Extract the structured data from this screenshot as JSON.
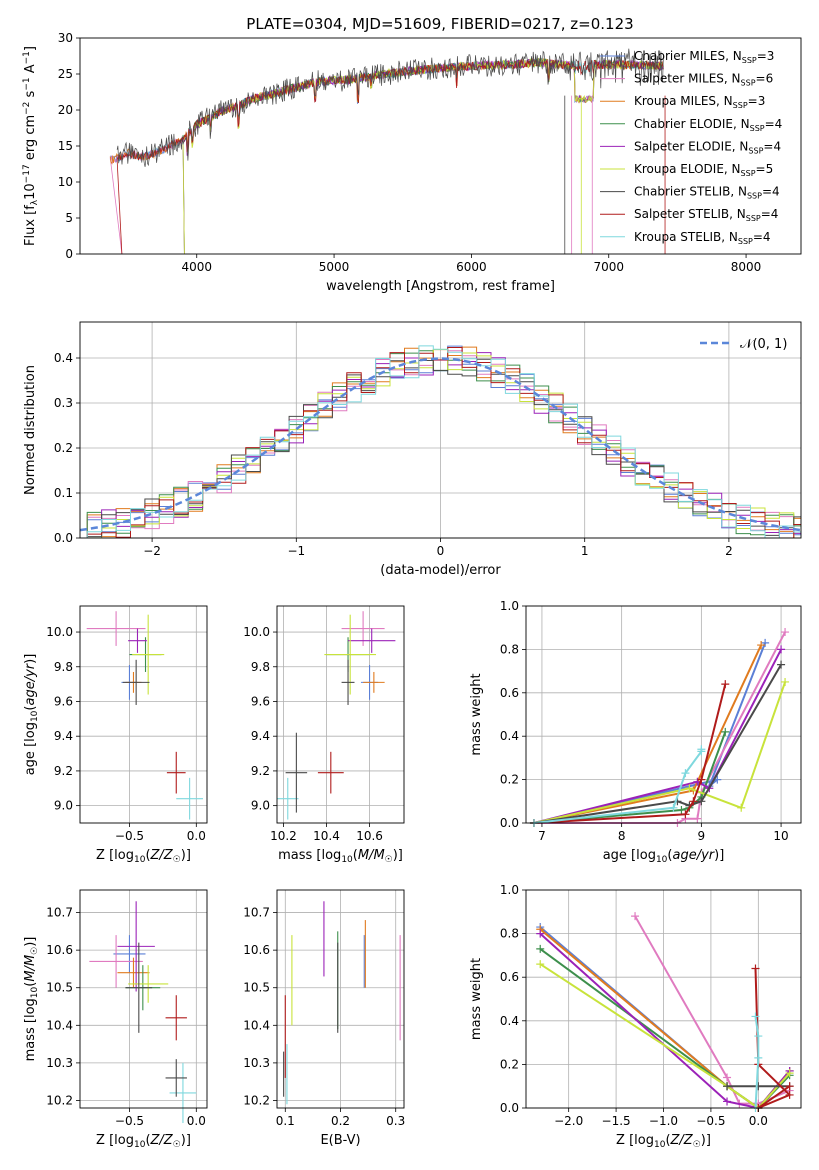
{
  "figure_title": "PLATE=0304, MJD=51609, FIBERID=0217, z=0.123",
  "colors": {
    "Chabrier MILES": "#5b7fd6",
    "Salpeter MILES": "#e07bc0",
    "Kroupa MILES": "#e07b1f",
    "Chabrier ELODIE": "#3d8f4c",
    "Salpeter ELODIE": "#9b22b8",
    "Kroupa ELODIE": "#c8e33b",
    "Chabrier STELIB": "#4a4a4a",
    "Salpeter STELIB": "#b01b1b",
    "Kroupa STELIB": "#7fd8de"
  },
  "chart_data": [
    {
      "id": "spectrum",
      "type": "line",
      "title": "PLATE=0304, MJD=51609, FIBERID=0217, z=0.123",
      "xlabel": "wavelength [Angstrom, rest frame]",
      "ylabel": "Flux [f_λ 10^-17 erg cm^-2 s^-1 A^-1]",
      "xlim": [
        3150,
        8400
      ],
      "ylim": [
        0,
        30
      ],
      "xticks": [
        "4000",
        "5000",
        "6000",
        "7000",
        "8000"
      ],
      "yticks": [
        "0",
        "5",
        "10",
        "15",
        "20",
        "25",
        "30"
      ],
      "grid": false,
      "legend_position": "top-right",
      "spectrum_shape": {
        "x": [
          3370,
          3500,
          3600,
          3700,
          3800,
          3900,
          4000,
          4100,
          4200,
          4300,
          4400,
          4500,
          4700,
          4900,
          5100,
          5300,
          5500,
          5700,
          5900,
          6100,
          6300,
          6500,
          6700,
          6900,
          7100,
          7300,
          7400
        ],
        "y": [
          13,
          14,
          13.5,
          14,
          15,
          16,
          18,
          19,
          20,
          20.5,
          21.5,
          22,
          23,
          24,
          24.2,
          24.8,
          25.3,
          25.7,
          26,
          26.2,
          26.3,
          26.6,
          26.2,
          26.3,
          26.3,
          26.2,
          26.2
        ]
      },
      "series": [
        {
          "name": "Chabrier MILES",
          "nssp": "3"
        },
        {
          "name": "Salpeter MILES",
          "nssp": "6"
        },
        {
          "name": "Kroupa MILES",
          "nssp": "3"
        },
        {
          "name": "Chabrier ELODIE",
          "nssp": "4"
        },
        {
          "name": "Salpeter ELODIE",
          "nssp": "4"
        },
        {
          "name": "Kroupa ELODIE",
          "nssp": "5"
        },
        {
          "name": "Chabrier STELIB",
          "nssp": "4"
        },
        {
          "name": "Salpeter STELIB",
          "nssp": "4"
        },
        {
          "name": "Kroupa STELIB",
          "nssp": "4"
        }
      ]
    },
    {
      "id": "residuals",
      "type": "line",
      "xlabel": "(data-model)/error",
      "ylabel": "Normed distribution",
      "xlim": [
        -2.5,
        2.5
      ],
      "ylim": [
        0,
        0.48
      ],
      "xticks": [
        "−2",
        "−1",
        "0",
        "1",
        "2"
      ],
      "yticks": [
        "0.0",
        "0.1",
        "0.2",
        "0.3",
        "0.4"
      ],
      "grid": true,
      "legend_position": "top-right",
      "gaussian_label": "𝒩(0, 1)",
      "gaussian": {
        "mean": 0,
        "sigma": 1
      },
      "bin_width": 0.1
    },
    {
      "id": "age_vs_Z",
      "type": "scatter",
      "xlabel": "Z [log10(Z/Z☉)]",
      "ylabel": "age [log10(age/yr)]",
      "xlim": [
        -0.87,
        0.08
      ],
      "ylim": [
        8.9,
        10.15
      ],
      "xticks": [
        "−0.5",
        "0.0"
      ],
      "yticks": [
        "9.0",
        "9.2",
        "9.4",
        "9.6",
        "9.8",
        "10.0"
      ],
      "grid": true,
      "points": [
        {
          "series": "Chabrier MILES",
          "x": -0.5,
          "y": 9.71,
          "xerr": 0.06,
          "yerr": 0.1
        },
        {
          "series": "Salpeter MILES",
          "x": -0.6,
          "y": 10.02,
          "xerr": 0.22,
          "yerr": 0.1
        },
        {
          "series": "Kroupa MILES",
          "x": -0.47,
          "y": 9.71,
          "xerr": 0.06,
          "yerr": 0.06
        },
        {
          "series": "Chabrier ELODIE",
          "x": -0.38,
          "y": 9.87,
          "xerr": 0.12,
          "yerr": 0.1
        },
        {
          "series": "Salpeter ELODIE",
          "x": -0.44,
          "y": 9.95,
          "xerr": 0.07,
          "yerr": 0.07
        },
        {
          "series": "Kroupa ELODIE",
          "x": -0.36,
          "y": 9.87,
          "xerr": 0.12,
          "yerr": 0.23
        },
        {
          "series": "Chabrier STELIB",
          "x": -0.45,
          "y": 9.71,
          "xerr": 0.1,
          "yerr": 0.13
        },
        {
          "series": "Salpeter STELIB",
          "x": -0.15,
          "y": 9.19,
          "xerr": 0.07,
          "yerr": 0.12
        },
        {
          "series": "Kroupa STELIB",
          "x": -0.05,
          "y": 9.04,
          "xerr": 0.1,
          "yerr": 0.12
        }
      ]
    },
    {
      "id": "age_vs_mass",
      "type": "scatter",
      "xlabel": "mass [log10(M/M☉)]",
      "ylabel": "",
      "xlim": [
        10.17,
        10.76
      ],
      "ylim": [
        8.9,
        10.15
      ],
      "xticks": [
        "10.2",
        "10.4",
        "10.6"
      ],
      "yticks": [
        "9.0",
        "9.2",
        "9.4",
        "9.6",
        "9.8",
        "10.0"
      ],
      "grid": true,
      "points": [
        {
          "series": "Chabrier MILES",
          "x": 10.6,
          "y": 9.71,
          "xerr": 0.04,
          "yerr": 0.1
        },
        {
          "series": "Salpeter MILES",
          "x": 10.57,
          "y": 10.02,
          "xerr": 0.1,
          "yerr": 0.1
        },
        {
          "series": "Kroupa MILES",
          "x": 10.62,
          "y": 9.71,
          "xerr": 0.05,
          "yerr": 0.06
        },
        {
          "series": "Chabrier ELODIE",
          "x": 10.5,
          "y": 9.87,
          "xerr": 0.1,
          "yerr": 0.1
        },
        {
          "series": "Salpeter ELODIE",
          "x": 10.61,
          "y": 9.95,
          "xerr": 0.11,
          "yerr": 0.07
        },
        {
          "series": "Kroupa ELODIE",
          "x": 10.51,
          "y": 9.87,
          "xerr": 0.12,
          "yerr": 0.23
        },
        {
          "series": "Chabrier STELIB",
          "x": 10.5,
          "y": 9.71,
          "xerr": 0.03,
          "yerr": 0.13
        },
        {
          "series": "Salpeter STELIB",
          "x": 10.42,
          "y": 9.19,
          "xerr": 0.06,
          "yerr": 0.12
        },
        {
          "series": "Kroupa STELIB",
          "x": 10.22,
          "y": 9.04,
          "xerr": 0.05,
          "yerr": 0.12
        },
        {
          "series": "Chabrier STELIB",
          "x": 10.26,
          "y": 9.19,
          "xerr": 0.05,
          "yerr": 0.23
        }
      ]
    },
    {
      "id": "weight_vs_age",
      "type": "line",
      "xlabel": "age [log10(age/yr)]",
      "ylabel": "mass weight",
      "xlim": [
        6.8,
        10.25
      ],
      "ylim": [
        0,
        1
      ],
      "xticks": [
        "7",
        "8",
        "9",
        "10"
      ],
      "yticks": [
        "0.0",
        "0.2",
        "0.4",
        "0.6",
        "0.8",
        "1.0"
      ],
      "grid": true,
      "series": [
        {
          "name": "Chabrier MILES",
          "x": [
            6.9,
            9.2,
            9.1,
            9.8
          ],
          "y": [
            0.0,
            0.2,
            0.17,
            0.83
          ]
        },
        {
          "name": "Salpeter MILES",
          "x": [
            6.9,
            8.7,
            8.8,
            8.95,
            9.0,
            10.05
          ],
          "y": [
            0.0,
            0.0,
            0.02,
            0.02,
            0.14,
            0.88
          ]
        },
        {
          "name": "Kroupa MILES",
          "x": [
            6.9,
            8.9,
            9.75
          ],
          "y": [
            0.0,
            0.15,
            0.82
          ]
        },
        {
          "name": "Chabrier ELODIE",
          "x": [
            6.9,
            8.75,
            8.85,
            9.0,
            9.3
          ],
          "y": [
            0.0,
            0.06,
            0.07,
            0.12,
            0.42
          ]
        },
        {
          "name": "Salpeter ELODIE",
          "x": [
            6.9,
            8.95,
            9.1,
            10.0
          ],
          "y": [
            0.0,
            0.19,
            0.16,
            0.8
          ]
        },
        {
          "name": "Kroupa ELODIE",
          "x": [
            6.9,
            8.85,
            9.5,
            10.05
          ],
          "y": [
            0.0,
            0.16,
            0.07,
            0.65
          ]
        },
        {
          "name": "Chabrier STELIB",
          "x": [
            6.9,
            8.7,
            8.85,
            9.0,
            10.0
          ],
          "y": [
            0.0,
            0.1,
            0.08,
            0.1,
            0.73
          ]
        },
        {
          "name": "Salpeter STELIB",
          "x": [
            6.9,
            8.8,
            8.9,
            9.0,
            9.3
          ],
          "y": [
            0.0,
            0.04,
            0.1,
            0.2,
            0.64
          ]
        },
        {
          "name": "Kroupa STELIB",
          "x": [
            6.9,
            8.65,
            8.8,
            9.0,
            9.0
          ],
          "y": [
            0.0,
            0.07,
            0.23,
            0.33,
            0.34
          ]
        }
      ]
    },
    {
      "id": "mass_vs_Z",
      "type": "scatter",
      "xlabel": "Z [log10(Z/Z☉)]",
      "ylabel": "mass [log10(M/M☉)]",
      "xlim": [
        -0.87,
        0.08
      ],
      "ylim": [
        10.18,
        10.76
      ],
      "xticks": [
        "−0.5",
        "0.0"
      ],
      "yticks": [
        "10.2",
        "10.3",
        "10.4",
        "10.5",
        "10.6",
        "10.7"
      ],
      "grid": true,
      "points": [
        {
          "series": "Chabrier MILES",
          "x": -0.5,
          "y": 10.59,
          "xerr": 0.12,
          "yerr": 0.05
        },
        {
          "series": "Salpeter MILES",
          "x": -0.6,
          "y": 10.57,
          "xerr": 0.2,
          "yerr": 0.07
        },
        {
          "series": "Kroupa MILES",
          "x": -0.47,
          "y": 10.54,
          "xerr": 0.12,
          "yerr": 0.04
        },
        {
          "series": "Chabrier ELODIE",
          "x": -0.4,
          "y": 10.5,
          "xerr": 0.13,
          "yerr": 0.06
        },
        {
          "series": "Salpeter ELODIE",
          "x": -0.45,
          "y": 10.61,
          "xerr": 0.14,
          "yerr": 0.12
        },
        {
          "series": "Kroupa ELODIE",
          "x": -0.36,
          "y": 10.51,
          "xerr": 0.15,
          "yerr": 0.05
        },
        {
          "series": "Chabrier STELIB",
          "x": -0.43,
          "y": 10.5,
          "xerr": 0.1,
          "yerr": 0.12
        },
        {
          "series": "Salpeter STELIB",
          "x": -0.15,
          "y": 10.42,
          "xerr": 0.08,
          "yerr": 0.06
        },
        {
          "series": "Kroupa STELIB",
          "x": -0.1,
          "y": 10.22,
          "xerr": 0.1,
          "yerr": 0.08
        },
        {
          "series": "Chabrier STELIB",
          "x": -0.15,
          "y": 10.26,
          "xerr": 0.08,
          "yerr": 0.05
        }
      ]
    },
    {
      "id": "mass_vs_ebv",
      "type": "scatter",
      "xlabel": "E(B-V)",
      "ylabel": "",
      "xlim": [
        0.085,
        0.315
      ],
      "ylim": [
        10.18,
        10.76
      ],
      "xticks": [
        "0.1",
        "0.2",
        "0.3"
      ],
      "yticks": [
        "10.2",
        "10.3",
        "10.4",
        "10.5",
        "10.6",
        "10.7"
      ],
      "grid": true,
      "points": [
        {
          "series": "Chabrier MILES",
          "x": 0.243,
          "y": 10.57,
          "xerr": 0,
          "yerr": 0.07
        },
        {
          "series": "Salpeter MILES",
          "x": 0.308,
          "y": 10.5,
          "xerr": 0,
          "yerr": 0.14
        },
        {
          "series": "Kroupa MILES",
          "x": 0.245,
          "y": 10.59,
          "xerr": 0,
          "yerr": 0.09
        },
        {
          "series": "Chabrier ELODIE",
          "x": 0.195,
          "y": 10.52,
          "xerr": 0,
          "yerr": 0.13
        },
        {
          "series": "Salpeter ELODIE",
          "x": 0.17,
          "y": 10.63,
          "xerr": 0,
          "yerr": 0.1
        },
        {
          "series": "Kroupa ELODIE",
          "x": 0.112,
          "y": 10.52,
          "xerr": 0,
          "yerr": 0.12
        },
        {
          "series": "Chabrier STELIB",
          "x": 0.195,
          "y": 10.5,
          "xerr": 0,
          "yerr": 0.12
        },
        {
          "series": "Salpeter STELIB",
          "x": 0.1,
          "y": 10.37,
          "xerr": 0,
          "yerr": 0.11
        },
        {
          "series": "Kroupa STELIB",
          "x": 0.103,
          "y": 10.27,
          "xerr": 0,
          "yerr": 0.08
        },
        {
          "series": "Chabrier STELIB",
          "x": 0.097,
          "y": 10.27,
          "xerr": 0,
          "yerr": 0.06
        }
      ]
    },
    {
      "id": "weight_vs_Z",
      "type": "line",
      "xlabel": "Z [log10(Z/Z☉)]",
      "ylabel": "mass weight",
      "xlim": [
        -2.45,
        0.45
      ],
      "ylim": [
        0,
        1
      ],
      "xticks": [
        "−2.0",
        "−1.5",
        "−1.0",
        "−0.5",
        "0.0"
      ],
      "yticks": [
        "0.0",
        "0.2",
        "0.4",
        "0.6",
        "0.8",
        "1.0"
      ],
      "grid": true,
      "series": [
        {
          "name": "Chabrier MILES",
          "x": [
            -2.3,
            -0.33,
            0.0,
            0.33
          ],
          "y": [
            0.83,
            0.1,
            0.0,
            0.17
          ]
        },
        {
          "name": "Salpeter MILES",
          "x": [
            -1.3,
            -0.33,
            -0.2,
            0.0,
            0.33
          ],
          "y": [
            0.88,
            0.14,
            0.02,
            0.02,
            0.08
          ]
        },
        {
          "name": "Kroupa MILES",
          "x": [
            -2.3,
            -0.33,
            0.0,
            0.33
          ],
          "y": [
            0.82,
            0.1,
            0.0,
            0.17
          ]
        },
        {
          "name": "Chabrier ELODIE",
          "x": [
            -2.3,
            -0.33,
            0.0,
            0.33
          ],
          "y": [
            0.73,
            0.1,
            0.0,
            0.15
          ]
        },
        {
          "name": "Salpeter ELODIE",
          "x": [
            -2.3,
            -0.33,
            0.0,
            0.33
          ],
          "y": [
            0.8,
            0.03,
            0.0,
            0.17
          ]
        },
        {
          "name": "Kroupa ELODIE",
          "x": [
            -2.3,
            -0.33,
            0.0,
            0.33
          ],
          "y": [
            0.66,
            0.1,
            0.0,
            0.16
          ]
        },
        {
          "name": "Chabrier STELIB",
          "x": [
            -0.33,
            0.0,
            0.33
          ],
          "y": [
            0.1,
            0.1,
            0.1
          ]
        },
        {
          "name": "Salpeter STELIB",
          "x": [
            -0.03,
            0.0,
            0.33,
            0.0,
            0.33
          ],
          "y": [
            0.64,
            0.2,
            0.06,
            0.0,
            0.1
          ]
        },
        {
          "name": "Kroupa STELIB",
          "x": [
            -0.03,
            0.0,
            0.0,
            -0.03
          ],
          "y": [
            0.42,
            0.33,
            0.23,
            0.0
          ]
        }
      ]
    }
  ]
}
